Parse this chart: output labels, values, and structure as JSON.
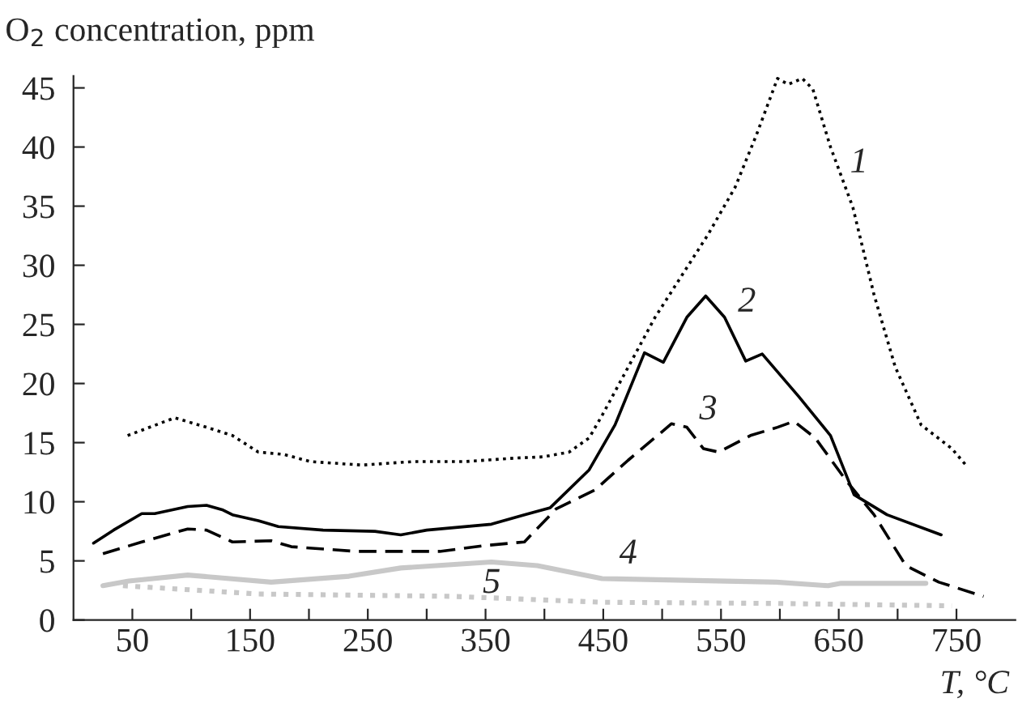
{
  "chart_data": {
    "type": "line",
    "ylabel": "O$_{2}$ concentration, ppm",
    "xlabel": "T, °C",
    "xlim": [
      0,
      800
    ],
    "ylim": [
      0,
      46
    ],
    "xticks": [
      {
        "value": 50,
        "label": "50"
      },
      {
        "value": 100,
        "label": null
      },
      {
        "value": 150,
        "label": "150"
      },
      {
        "value": 200,
        "label": null
      },
      {
        "value": 250,
        "label": "250"
      },
      {
        "value": 300,
        "label": null
      },
      {
        "value": 350,
        "label": "350"
      },
      {
        "value": 400,
        "label": null
      },
      {
        "value": 450,
        "label": "450"
      },
      {
        "value": 500,
        "label": null
      },
      {
        "value": 550,
        "label": "550"
      },
      {
        "value": 600,
        "label": null
      },
      {
        "value": 650,
        "label": "650"
      },
      {
        "value": 700,
        "label": null
      },
      {
        "value": 750,
        "label": "750"
      }
    ],
    "yticks": [
      0,
      5,
      10,
      15,
      20,
      25,
      30,
      35,
      40,
      45
    ],
    "grid": false,
    "legend": false,
    "series": [
      {
        "name": "1",
        "color": "#000000",
        "line_style": "dotted",
        "x": [
          46,
          86,
          113,
          135,
          157,
          179,
          201,
          245,
          289,
          333,
          377,
          399,
          421,
          438,
          449,
          494,
          539,
          562,
          580,
          598,
          607,
          619,
          628,
          643,
          662,
          680,
          698,
          720,
          746,
          758
        ],
        "values": [
          15.6,
          17.1,
          16.3,
          15.6,
          14.2,
          14.0,
          13.4,
          13.1,
          13.4,
          13.4,
          13.7,
          13.8,
          14.2,
          15.4,
          17.3,
          25.6,
          32.6,
          36.6,
          41.0,
          45.8,
          45.3,
          45.8,
          44.9,
          40.0,
          34.9,
          27.5,
          21.4,
          16.5,
          14.5,
          13.1
        ]
      },
      {
        "name": "2",
        "color": "#000000",
        "line_style": "solid",
        "x": [
          17,
          34,
          58,
          69,
          97,
          113,
          127,
          135,
          157,
          174,
          212,
          256,
          278,
          300,
          355,
          383,
          405,
          438,
          460,
          485,
          501,
          521,
          537,
          553,
          571,
          585,
          616,
          643,
          663,
          691,
          737
        ],
        "values": [
          6.5,
          7.6,
          9.0,
          9.0,
          9.6,
          9.7,
          9.3,
          8.9,
          8.4,
          7.9,
          7.6,
          7.5,
          7.2,
          7.6,
          8.1,
          8.9,
          9.5,
          12.7,
          16.5,
          22.6,
          21.8,
          25.6,
          27.4,
          25.6,
          21.9,
          22.5,
          18.9,
          15.6,
          10.6,
          8.9,
          7.2
        ]
      },
      {
        "name": "3",
        "color": "#000000",
        "line_style": "dashed",
        "x": [
          25,
          58,
          97,
          113,
          135,
          168,
          185,
          240,
          267,
          311,
          350,
          383,
          410,
          443,
          471,
          508,
          521,
          535,
          548,
          575,
          598,
          612,
          630,
          657,
          680,
          707,
          735,
          773
        ],
        "values": [
          5.6,
          6.6,
          7.7,
          7.6,
          6.6,
          6.7,
          6.2,
          5.8,
          5.8,
          5.8,
          6.3,
          6.6,
          9.4,
          11.0,
          13.5,
          16.6,
          16.3,
          14.5,
          14.2,
          15.6,
          16.3,
          16.8,
          15.4,
          11.7,
          8.9,
          4.6,
          3.2,
          2.0
        ]
      },
      {
        "name": "4",
        "color": "#c8c8c8",
        "line_style": "solid",
        "x": [
          25,
          47,
          97,
          168,
          234,
          278,
          355,
          394,
          449,
          597,
          641,
          652,
          724
        ],
        "values": [
          2.9,
          3.3,
          3.8,
          3.2,
          3.7,
          4.4,
          4.9,
          4.6,
          3.5,
          3.2,
          2.9,
          3.1,
          3.1
        ]
      },
      {
        "name": "5",
        "color": "#c8c8c8",
        "line_style": "dotted",
        "x": [
          42,
          157,
          322,
          449,
          597,
          746
        ],
        "values": [
          2.9,
          2.2,
          2.0,
          1.5,
          1.4,
          1.2
        ]
      }
    ]
  }
}
